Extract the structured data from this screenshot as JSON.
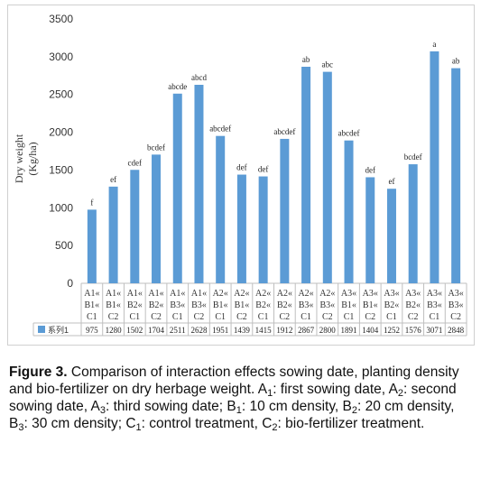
{
  "chart_data": {
    "type": "bar",
    "categories": [
      [
        "A1",
        "B1",
        "C1"
      ],
      [
        "A1",
        "B1",
        "C2"
      ],
      [
        "A1",
        "B2",
        "C1"
      ],
      [
        "A1",
        "B2",
        "C2"
      ],
      [
        "A1",
        "B3",
        "C1"
      ],
      [
        "A1",
        "B3",
        "C2"
      ],
      [
        "A2",
        "B1",
        "C1"
      ],
      [
        "A2",
        "B1",
        "C2"
      ],
      [
        "A2",
        "B2",
        "C1"
      ],
      [
        "A2",
        "B2",
        "C2"
      ],
      [
        "A2",
        "B3",
        "C1"
      ],
      [
        "A2",
        "B3",
        "C2"
      ],
      [
        "A3",
        "B1",
        "C1"
      ],
      [
        "A3",
        "B1",
        "C2"
      ],
      [
        "A3",
        "B2",
        "C1"
      ],
      [
        "A3",
        "B2",
        "C2"
      ],
      [
        "A3",
        "B3",
        "C1"
      ],
      [
        "A3",
        "B3",
        "C2"
      ]
    ],
    "series": [
      {
        "name": "系列1",
        "values": [
          975,
          1280,
          1502,
          1704,
          2511,
          2628,
          1951,
          1439,
          1415,
          1912,
          2867,
          2800,
          1891,
          1404,
          1252,
          1576,
          3071,
          2848
        ],
        "color": "#5b9bd5"
      }
    ],
    "significance_letters": [
      "f",
      "ef",
      "cdef",
      "bcdef",
      "abcde",
      "abcd",
      "abcdef",
      "def",
      "def",
      "abcdef",
      "ab",
      "abc",
      "abcdef",
      "def",
      "ef",
      "bcdef",
      "a",
      "ab"
    ],
    "category_separator": "«",
    "ylabel": [
      "Dry weight",
      "(Kg/ha)"
    ],
    "xlabel": "",
    "ylim": [
      0,
      3500
    ],
    "yticks": [
      0,
      500,
      1000,
      1500,
      2000,
      2500,
      3000,
      3500
    ],
    "grid": false,
    "legend": "data-table-left",
    "data_table": true
  },
  "caption": {
    "figure_label": "Figure 3.",
    "title_text": " Comparison of interaction effects sowing date, planting density and bio-fertilizer on dry herbage weight.",
    "defs": [
      {
        "sym": "A",
        "sub": "1",
        "text": ": first sowing date, "
      },
      {
        "sym": "A",
        "sub": "2",
        "text": ": second sowing date, "
      },
      {
        "sym": "A",
        "sub": "3",
        "text": ": third sowing date; "
      },
      {
        "sym": "B",
        "sub": "1",
        "text": ": 10 cm density, "
      },
      {
        "sym": "B",
        "sub": "2",
        "text": ": 20 cm density, "
      },
      {
        "sym": "B",
        "sub": "3",
        "text": ": 30 cm density; "
      },
      {
        "sym": "C",
        "sub": "1",
        "text": ": control treatment, "
      },
      {
        "sym": "C",
        "sub": "2",
        "text": ": bio-fertilizer treatment."
      }
    ]
  }
}
